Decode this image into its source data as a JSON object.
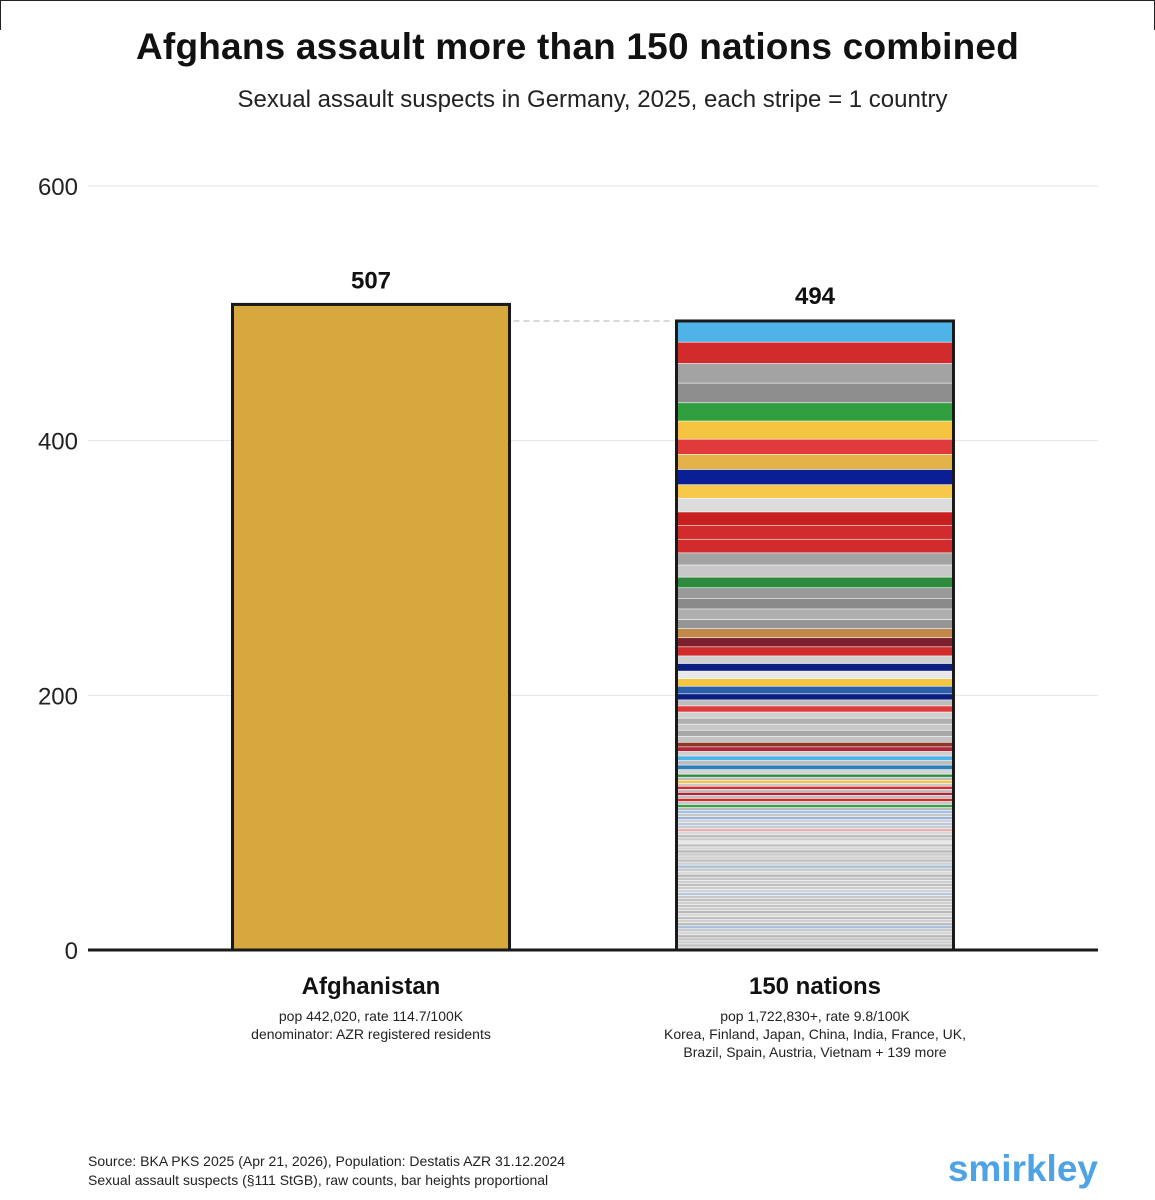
{
  "title": "Afghans assault more than 150 nations combined",
  "subtitle": "Sexual assault suspects in Germany, 2025, each stripe = 1 country",
  "chart_data": {
    "type": "bar",
    "categories": [
      "Afghanistan",
      "150 nations"
    ],
    "values": [
      507,
      494
    ],
    "ylim": [
      0,
      600
    ],
    "yticks": [
      0,
      200,
      400,
      600
    ],
    "tick_labels": [
      "0",
      "200",
      "400",
      "600"
    ],
    "value_labels": [
      "507",
      "494"
    ],
    "grid": true,
    "bar_colors": {
      "afghanistan": "#D6A83E",
      "outline": "#1a1a1a"
    },
    "category_notes": [
      [
        "pop 442,020, rate 114.7/100K",
        "denominator: AZR registered residents"
      ],
      [
        "pop 1,722,830+, rate 9.8/100K",
        "Korea, Finland, Japan, China, India, France, UK,",
        "Brazil, Spain, Austria, Vietnam + 139 more"
      ]
    ],
    "stripes_top_down": [
      {
        "c": "#4FB3E8",
        "v": 14
      },
      {
        "c": "#D22B2B",
        "v": 14
      },
      {
        "c": "#A3A3A3",
        "v": 13
      },
      {
        "c": "#8E8E8E",
        "v": 13
      },
      {
        "c": "#2E9E3E",
        "v": 12
      },
      {
        "c": "#F5C542",
        "v": 12
      },
      {
        "c": "#E03A3A",
        "v": 10
      },
      {
        "c": "#E3B34A",
        "v": 10
      },
      {
        "c": "#0A1E96",
        "v": 10
      },
      {
        "c": "#F7C84A",
        "v": 9
      },
      {
        "c": "#DCDCDC",
        "v": 9
      },
      {
        "c": "#C82020",
        "v": 9
      },
      {
        "c": "#D22B2B",
        "v": 9
      },
      {
        "c": "#D22B2B",
        "v": 9
      },
      {
        "c": "#A3A3A3",
        "v": 8
      },
      {
        "c": "#C8C8C8",
        "v": 8
      },
      {
        "c": "#2E8B3E",
        "v": 7
      },
      {
        "c": "#9A9A9A",
        "v": 7
      },
      {
        "c": "#8A8A8A",
        "v": 7
      },
      {
        "c": "#AFAFAF",
        "v": 7
      },
      {
        "c": "#969696",
        "v": 6
      },
      {
        "c": "#C2884A",
        "v": 6
      },
      {
        "c": "#7A1F2B",
        "v": 6
      },
      {
        "c": "#D22B2B",
        "v": 6
      },
      {
        "c": "#CFCFCF",
        "v": 5
      },
      {
        "c": "#0A1E80",
        "v": 5
      },
      {
        "c": "#E8E8E8",
        "v": 5
      },
      {
        "c": "#F5C542",
        "v": 5
      },
      {
        "c": "#2C5FA8",
        "v": 5
      },
      {
        "c": "#0A1E80",
        "v": 4
      },
      {
        "c": "#BDBDBD",
        "v": 4
      },
      {
        "c": "#E03A3A",
        "v": 4
      },
      {
        "c": "#D0D0D0",
        "v": 4
      },
      {
        "c": "#B0B0B0",
        "v": 4
      },
      {
        "c": "#C8C8C8",
        "v": 4
      },
      {
        "c": "#A8A8A8",
        "v": 4
      },
      {
        "c": "#C4C4C4",
        "v": 4
      },
      {
        "c": "#8B3A2A",
        "v": 3
      },
      {
        "c": "#B0253A",
        "v": 3
      },
      {
        "c": "#CFCFCF",
        "v": 3
      },
      {
        "c": "#4FB3E8",
        "v": 3
      },
      {
        "c": "#BDBDBD",
        "v": 3
      },
      {
        "c": "#2C7FB8",
        "v": 3
      },
      {
        "c": "#D4D4D4",
        "v": 3
      },
      {
        "c": "#2E8B3E",
        "v": 2
      },
      {
        "c": "#B8B8B8",
        "v": 2
      },
      {
        "c": "#F5C542",
        "v": 2
      },
      {
        "c": "#C8C8C8",
        "v": 2
      },
      {
        "c": "#D22B2B",
        "v": 2
      },
      {
        "c": "#BDBDBD",
        "v": 2
      },
      {
        "c": "#B0253A",
        "v": 2
      },
      {
        "c": "#C0C0C0",
        "v": 2
      },
      {
        "c": "#D22B2B",
        "v": 2
      },
      {
        "c": "#C8C8C8",
        "v": 2
      },
      {
        "c": "#3A9E4A",
        "v": 2
      },
      {
        "c": "#B8B8B8",
        "v": 2
      },
      {
        "c": "#A0C4E8",
        "v": 2
      },
      {
        "c": "#C8C8C8",
        "v": 2
      },
      {
        "c": "#9AB4DC",
        "v": 2
      },
      {
        "c": "#D0D0D0",
        "v": 2
      },
      {
        "c": "#B8C8E0",
        "v": 2
      },
      {
        "c": "#CCCCCC",
        "v": 2
      },
      {
        "c": "#E8B0B0",
        "v": 2
      },
      {
        "c": "#D6D6D6",
        "v": 2
      },
      {
        "c": "#BBBBBB",
        "v": 2
      },
      {
        "c": "#CCCCCC",
        "v": 2
      },
      {
        "c": "#E4E4E4",
        "v": 2
      },
      {
        "c": "#C0C0C0",
        "v": 2
      },
      {
        "c": "#D4D4D4",
        "v": 2
      },
      {
        "c": "#B8B8B8",
        "v": 2
      },
      {
        "c": "#C8C8C8",
        "v": 2
      },
      {
        "c": "#D0D0D0",
        "v": 2
      },
      {
        "c": "#BFBFBF",
        "v": 2
      },
      {
        "c": "#CFCFCF",
        "v": 2
      },
      {
        "c": "#A8C0DC",
        "v": 2
      },
      {
        "c": "#C8C8C8",
        "v": 2
      },
      {
        "c": "#D8D8D8",
        "v": 2
      },
      {
        "c": "#B8B8B8",
        "v": 2
      },
      {
        "c": "#C4C4C4",
        "v": 2
      },
      {
        "c": "#D0D0D0",
        "v": 2
      },
      {
        "c": "#BFBFBF",
        "v": 2
      },
      {
        "c": "#CCCCCC",
        "v": 2
      },
      {
        "c": "#D4D4D4",
        "v": 2
      },
      {
        "c": "#B8C8E0",
        "v": 2
      },
      {
        "c": "#C8C8C8",
        "v": 2
      },
      {
        "c": "#BFBFBF",
        "v": 2
      },
      {
        "c": "#D0D0D0",
        "v": 2
      },
      {
        "c": "#C4C4C4",
        "v": 2
      },
      {
        "c": "#CCCCCC",
        "v": 2
      },
      {
        "c": "#B8B8B8",
        "v": 2
      },
      {
        "c": "#D8D8D8",
        "v": 2
      },
      {
        "c": "#C0C0C0",
        "v": 2
      },
      {
        "c": "#CFCFCF",
        "v": 2
      },
      {
        "c": "#BBBBBB",
        "v": 2
      },
      {
        "c": "#A8C0DC",
        "v": 2
      },
      {
        "c": "#C8C8C8",
        "v": 2
      },
      {
        "c": "#D4D4D4",
        "v": 2
      },
      {
        "c": "#B8B8B8",
        "v": 2
      },
      {
        "c": "#C4C4C4",
        "v": 2
      },
      {
        "c": "#CCCCCC",
        "v": 2
      },
      {
        "c": "#BFBFBF",
        "v": 2
      },
      {
        "c": "#D0D0D0",
        "v": 2
      }
    ]
  },
  "source_lines": [
    "Source: BKA PKS 2025 (Apr 21, 2026), Population: Destatis AZR 31.12.2024",
    "Sexual assault suspects (§111 StGB), raw counts, bar heights proportional"
  ],
  "brand": "smirkley"
}
